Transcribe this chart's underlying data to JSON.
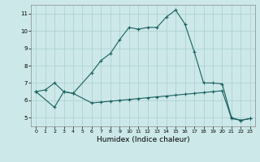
{
  "xlabel": "Humidex (Indice chaleur)",
  "xlim": [
    -0.5,
    23.5
  ],
  "ylim": [
    4.5,
    11.5
  ],
  "xticks": [
    0,
    1,
    2,
    3,
    4,
    5,
    6,
    7,
    8,
    9,
    10,
    11,
    12,
    13,
    14,
    15,
    16,
    17,
    18,
    19,
    20,
    21,
    22,
    23
  ],
  "yticks": [
    5,
    6,
    7,
    8,
    9,
    10,
    11
  ],
  "bg_color": "#cce8e8",
  "grid_color": "#aacfcf",
  "line_color": "#1a6060",
  "upper_x": [
    0,
    1,
    2,
    3,
    4,
    6,
    7,
    8,
    9,
    10,
    11,
    12,
    13,
    14,
    15,
    16,
    17,
    18,
    19,
    20,
    21,
    22,
    23
  ],
  "upper_y": [
    6.5,
    6.6,
    7.0,
    6.5,
    6.4,
    7.6,
    8.3,
    8.7,
    9.5,
    10.2,
    10.1,
    10.2,
    10.2,
    10.8,
    11.2,
    10.4,
    8.8,
    7.0,
    7.0,
    6.95,
    5.0,
    4.85,
    4.95
  ],
  "lower_x": [
    0,
    2,
    3,
    4,
    6,
    7,
    8,
    9,
    10,
    11,
    12,
    13,
    14,
    15,
    16,
    17,
    18,
    19,
    20,
    21,
    22,
    23
  ],
  "lower_y": [
    6.5,
    5.6,
    6.5,
    6.4,
    5.85,
    5.9,
    5.95,
    6.0,
    6.05,
    6.1,
    6.15,
    6.2,
    6.25,
    6.3,
    6.35,
    6.4,
    6.45,
    6.5,
    6.55,
    4.95,
    4.85,
    4.95
  ]
}
